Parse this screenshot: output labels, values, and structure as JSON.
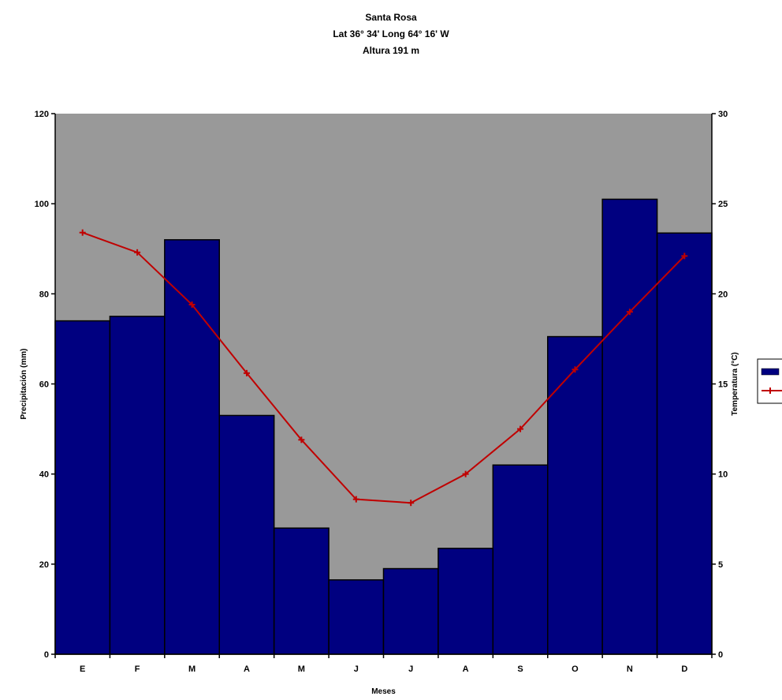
{
  "chart_data": {
    "type": "bar",
    "title": [
      "Santa Rosa",
      "Lat 36° 34'  Long 64° 16' W",
      "Altura 191 m"
    ],
    "xlabel": "Meses",
    "ylabel_left": "Precipitación (mm)",
    "ylabel_right": "Temperatura (°C)",
    "categories": [
      "E",
      "F",
      "M",
      "A",
      "M",
      "J",
      "J",
      "A",
      "S",
      "O",
      "N",
      "D"
    ],
    "ylim_left": [
      0,
      120
    ],
    "yticks_left": [
      0,
      20,
      40,
      60,
      80,
      100,
      120
    ],
    "ylim_right": [
      0,
      30
    ],
    "yticks_right": [
      0,
      5,
      10,
      15,
      20,
      25,
      30
    ],
    "series": [
      {
        "kind": "bar",
        "axis": "left",
        "values": [
          74,
          75,
          92,
          53,
          28,
          16.5,
          19,
          23.5,
          42,
          70.5,
          101,
          93.5
        ]
      },
      {
        "kind": "line",
        "axis": "right",
        "values": [
          23.4,
          22.3,
          19.4,
          15.6,
          11.9,
          8.6,
          8.4,
          10.0,
          12.5,
          15.8,
          19.0,
          22.1
        ]
      }
    ],
    "colors": {
      "plot_background": "#999999",
      "bars": "#000080",
      "line": "#c00000"
    },
    "legend": "right",
    "grid": false
  }
}
